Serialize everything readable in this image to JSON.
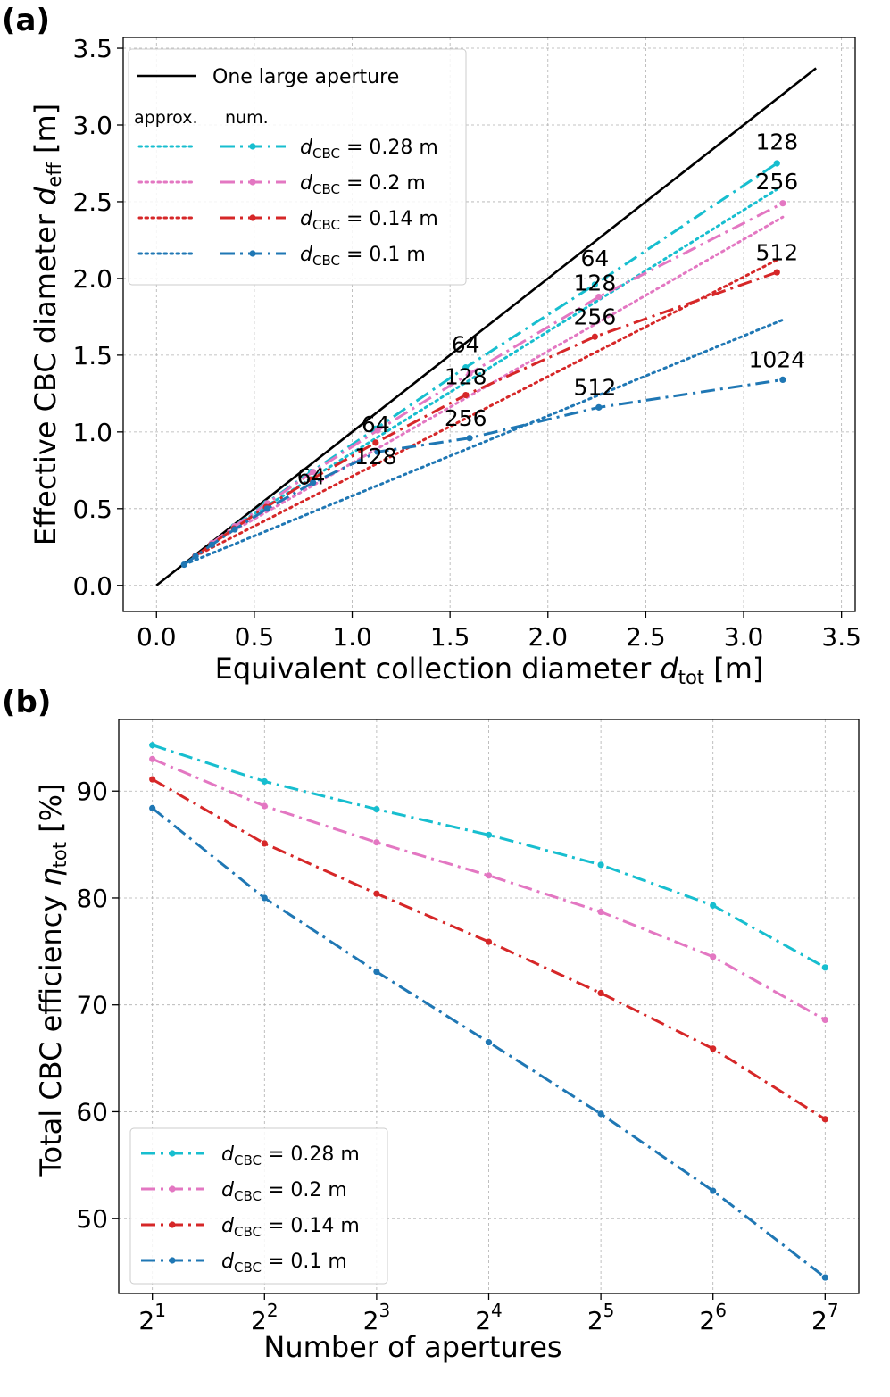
{
  "colors": {
    "c028": "#17becf",
    "c020": "#e377c2",
    "c014": "#d62728",
    "c010": "#1f77b4",
    "big": "#000000"
  },
  "chart_data": [
    {
      "panel": "(a)",
      "type": "line",
      "xlabel": "Equivalent collection diameter d_tot [m]",
      "ylabel": "Effective CBC diameter d_eff [m]",
      "xlim": [
        -0.17,
        3.57
      ],
      "ylim": [
        -0.17,
        3.57
      ],
      "xticks": [
        "0.0",
        "0.5",
        "1.0",
        "1.5",
        "2.0",
        "2.5",
        "3.0",
        "3.5"
      ],
      "yticks": [
        "0.0",
        "0.5",
        "1.0",
        "1.5",
        "2.0",
        "2.5",
        "3.0",
        "3.5"
      ],
      "legend": {
        "position": "top-left",
        "big_label": "One large aperture",
        "approx_head": "approx.",
        "num_head": "num.",
        "entries": [
          {
            "key": "c028",
            "var": "d",
            "sub": "CBC",
            "rest": " = 0.28 m"
          },
          {
            "key": "c020",
            "var": "d",
            "sub": "CBC",
            "rest": " = 0.2 m"
          },
          {
            "key": "c014",
            "var": "d",
            "sub": "CBC",
            "rest": " = 0.14 m"
          },
          {
            "key": "c010",
            "var": "d",
            "sub": "CBC",
            "rest": " = 0.1 m"
          }
        ]
      },
      "big_aperture": {
        "x": [
          0.0,
          3.37
        ],
        "y": [
          0.0,
          3.37
        ]
      },
      "series": [
        {
          "key": "c028",
          "name": "d_CBC = 0.28 m",
          "num_x": [
            0.396,
            0.56,
            0.79,
            1.12,
            1.58,
            2.24,
            3.17
          ],
          "num_y": [
            0.385,
            0.535,
            0.74,
            1.02,
            1.42,
            1.96,
            2.75
          ],
          "approx_x": [
            0.396,
            3.17
          ],
          "approx_y": [
            0.385,
            2.58
          ]
        },
        {
          "key": "c020",
          "name": "d_CBC = 0.2 m",
          "num_x": [
            0.283,
            0.4,
            0.566,
            0.8,
            1.13,
            1.6,
            2.26,
            3.2
          ],
          "num_y": [
            0.275,
            0.385,
            0.535,
            0.74,
            1.01,
            1.38,
            1.88,
            2.49
          ],
          "approx_x": [
            0.283,
            3.2
          ],
          "approx_y": [
            0.275,
            2.4
          ]
        },
        {
          "key": "c014",
          "name": "d_CBC = 0.14 m",
          "num_x": [
            0.198,
            0.28,
            0.396,
            0.56,
            0.79,
            1.12,
            1.58,
            2.24,
            3.17
          ],
          "num_y": [
            0.19,
            0.265,
            0.37,
            0.51,
            0.69,
            0.93,
            1.24,
            1.62,
            2.04
          ],
          "approx_x": [
            0.198,
            3.17
          ],
          "approx_y": [
            0.19,
            2.12
          ]
        },
        {
          "key": "c010",
          "name": "d_CBC = 0.1 m",
          "num_x": [
            0.141,
            0.2,
            0.283,
            0.4,
            0.566,
            0.8,
            1.13,
            1.6,
            2.26,
            3.2
          ],
          "num_y": [
            0.135,
            0.19,
            0.265,
            0.365,
            0.5,
            0.67,
            0.87,
            0.96,
            1.16,
            1.34
          ],
          "approx_x": [
            0.141,
            3.2
          ],
          "approx_y": [
            0.135,
            1.73
          ]
        }
      ],
      "annotations": [
        {
          "text": "128",
          "x": 3.17,
          "y": 2.84
        },
        {
          "text": "256",
          "x": 3.17,
          "y": 2.58
        },
        {
          "text": "512",
          "x": 3.17,
          "y": 2.12
        },
        {
          "text": "1024",
          "x": 3.17,
          "y": 1.42
        },
        {
          "text": "64",
          "x": 2.24,
          "y": 2.08
        },
        {
          "text": "128",
          "x": 2.24,
          "y": 1.92
        },
        {
          "text": "256",
          "x": 2.24,
          "y": 1.7
        },
        {
          "text": "512",
          "x": 2.24,
          "y": 1.24
        },
        {
          "text": "64",
          "x": 1.58,
          "y": 1.52
        },
        {
          "text": "128",
          "x": 1.58,
          "y": 1.31
        },
        {
          "text": "256",
          "x": 1.58,
          "y": 1.04
        },
        {
          "text": "64",
          "x": 1.12,
          "y": 1.0
        },
        {
          "text": "128",
          "x": 1.12,
          "y": 0.79
        },
        {
          "text": "64",
          "x": 0.79,
          "y": 0.66
        }
      ]
    },
    {
      "panel": "(b)",
      "type": "line",
      "xlabel": "Number of apertures",
      "ylabel": "Total CBC efficiency η_tot [%]",
      "xlim": [
        0.7,
        7.3
      ],
      "ylim": [
        43,
        96.7
      ],
      "x_exponents": [
        1,
        2,
        3,
        4,
        5,
        6,
        7
      ],
      "xtick_base": "2",
      "yticks": [
        50,
        60,
        70,
        80,
        90
      ],
      "legend": {
        "position": "lower-left",
        "entries": [
          {
            "key": "c028",
            "var": "d",
            "sub": "CBC",
            "rest": " = 0.28 m"
          },
          {
            "key": "c020",
            "var": "d",
            "sub": "CBC",
            "rest": " = 0.2 m"
          },
          {
            "key": "c014",
            "var": "d",
            "sub": "CBC",
            "rest": " = 0.14 m"
          },
          {
            "key": "c010",
            "var": "d",
            "sub": "CBC",
            "rest": " = 0.1 m"
          }
        ]
      },
      "series": [
        {
          "key": "c028",
          "name": "d_CBC = 0.28 m",
          "values": [
            94.3,
            90.9,
            88.3,
            85.9,
            83.1,
            79.3,
            73.5
          ]
        },
        {
          "key": "c020",
          "name": "d_CBC = 0.2 m",
          "values": [
            93.0,
            88.6,
            85.2,
            82.1,
            78.7,
            74.5,
            68.6
          ]
        },
        {
          "key": "c014",
          "name": "d_CBC = 0.14 m",
          "values": [
            91.1,
            85.1,
            80.4,
            75.9,
            71.1,
            65.9,
            59.3
          ]
        },
        {
          "key": "c010",
          "name": "d_CBC = 0.1 m",
          "values": [
            88.4,
            80.0,
            73.1,
            66.5,
            59.8,
            52.6,
            44.5
          ]
        }
      ]
    }
  ]
}
